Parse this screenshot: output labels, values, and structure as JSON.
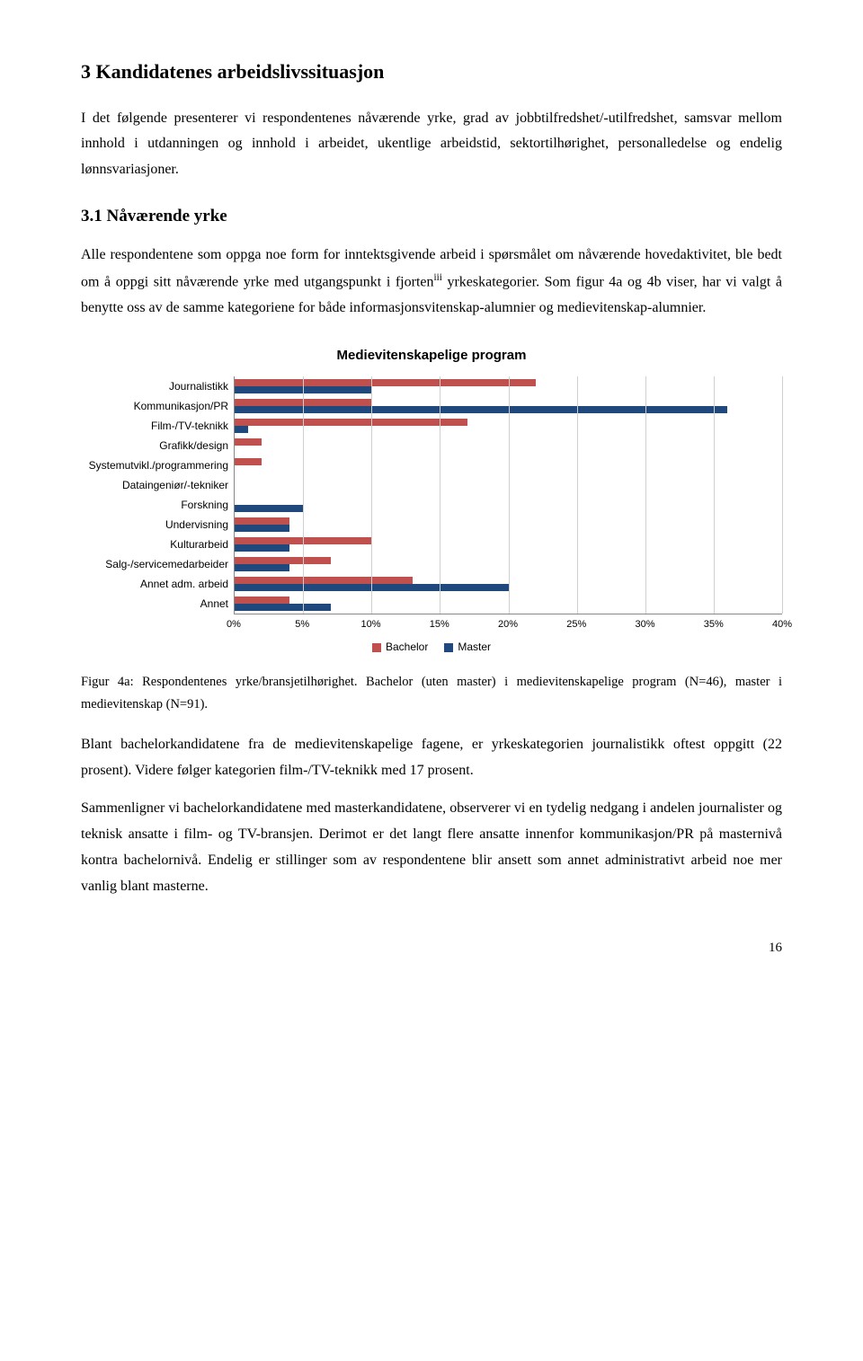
{
  "heading1": "3   Kandidatenes arbeidslivssituasjon",
  "intro": "I det følgende presenterer vi respondentenes nåværende yrke, grad av jobbtilfredshet/-utilfredshet, samsvar mellom innhold i utdanningen og innhold i arbeidet, ukentlige arbeidstid, sektortilhørighet, personalledelse og endelig lønnsvariasjoner.",
  "heading2": "3.1   Nåværende yrke",
  "p1_a": "Alle respondentene som oppga noe form for inntektsgivende arbeid i spørsmålet om nåværende hovedaktivitet, ble bedt om å oppgi sitt nåværende yrke med utgangspunkt i fjorten",
  "p1_sup": "iii",
  "p1_b": " yrkeskategorier. Som figur 4a og 4b viser, har vi valgt å benytte oss av de samme kategoriene for både informasjonsvitenskap-alumnier og medievitenskap-alumnier.",
  "chart": {
    "title": "Medievitenskapelige program",
    "categories": [
      "Journalistikk",
      "Kommunikasjon/PR",
      "Film-/TV-teknikk",
      "Grafikk/design",
      "Systemutvikl./programmering",
      "Dataingeniør/-tekniker",
      "Forskning",
      "Undervisning",
      "Kulturarbeid",
      "Salg-/servicemedarbeider",
      "Annet adm. arbeid",
      "Annet"
    ],
    "bachelor": [
      22,
      10,
      17,
      2,
      2,
      0,
      0,
      4,
      10,
      7,
      13,
      4
    ],
    "master": [
      10,
      36,
      1,
      0,
      0,
      0,
      5,
      4,
      4,
      4,
      20,
      7
    ],
    "colors": {
      "bachelor": "#c0504d",
      "master": "#1f497d"
    },
    "xmax": 40,
    "xtick_step": 5,
    "xticks": [
      "0%",
      "5%",
      "10%",
      "15%",
      "20%",
      "25%",
      "30%",
      "35%",
      "40%"
    ],
    "legend": {
      "bachelor": "Bachelor",
      "master": "Master"
    },
    "grid_color": "#cfcfcf"
  },
  "caption": "Figur 4a: Respondentenes yrke/bransjetilhørighet. Bachelor (uten master) i medievitenskapelige program (N=46), master i medievitenskap (N=91).",
  "p2": "Blant bachelorkandidatene fra de medievitenskapelige fagene, er yrkeskategorien journalistikk oftest oppgitt (22 prosent). Videre følger kategorien film-/TV-teknikk med 17 prosent.",
  "p3": "Sammenligner vi bachelorkandidatene med masterkandidatene, observerer vi en tydelig nedgang i andelen journalister og teknisk ansatte i film- og TV-bransjen. Derimot er det langt flere ansatte innenfor kommunikasjon/PR på masternivå kontra bachelornivå. Endelig er stillinger som av respondentene blir ansett som annet administrativt arbeid noe mer vanlig blant masterne.",
  "page_number": "16"
}
